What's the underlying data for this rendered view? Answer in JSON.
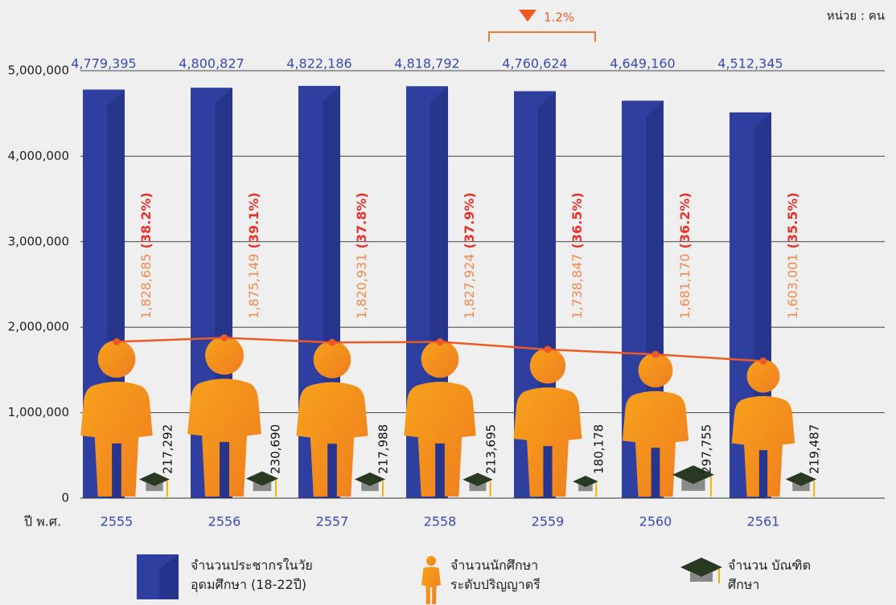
{
  "chart_data": {
    "type": "bar",
    "unit": "หน่วย : คน",
    "x_label": "ปี พ.ศ.",
    "categories": [
      "2555",
      "2556",
      "2557",
      "2558",
      "2559",
      "2560",
      "2561"
    ],
    "ylim": [
      0,
      5000000
    ],
    "yticks": [
      0,
      {
        "value": 1000000,
        "label": "1,000,000"
      },
      {
        "value": 2000000,
        "label": "2,000,000"
      },
      {
        "value": 3000000,
        "label": "3,000,000"
      },
      {
        "value": 4000000,
        "label": "4,000,000"
      },
      {
        "value": 5000000,
        "label": "5,000,000"
      }
    ],
    "grid": true,
    "series": [
      {
        "name": "จำนวนประชากรในวัย อุดมศึกษา (18-22ปี)",
        "color": "#2f3f9f",
        "values": [
          4779395,
          4800827,
          4822186,
          4818792,
          4760624,
          4649160,
          4512345
        ],
        "value_labels": [
          "4,779,395",
          "4,800,827",
          "4,822,186",
          "4,818,792",
          "4,760,624",
          "4,649,160",
          "4,512,345"
        ]
      },
      {
        "name": "จำนวนนักศึกษา ระดับปริญญาตรี",
        "color": "#ee5a24",
        "values": [
          1828685,
          1875149,
          1820931,
          1827924,
          1738847,
          1681170,
          1603001
        ],
        "value_labels": [
          "1,828,685",
          "1,875,149",
          "1,820,931",
          "1,827,924",
          "1,738,847",
          "1,681,170",
          "1,603,001"
        ]
      },
      {
        "name": "จำนวน บัณฑิตศึกษา",
        "color": "#2a3a22",
        "values": [
          217292,
          230690,
          217988,
          213695,
          180178,
          297755,
          219487
        ],
        "value_labels": [
          "217,292",
          "230,690",
          "217,988",
          "213,695",
          "180,178",
          "297,755",
          "219,487"
        ]
      }
    ],
    "share": {
      "values": [
        38.2,
        39.1,
        37.8,
        37.9,
        36.5,
        36.2,
        35.5
      ],
      "value_labels": [
        "(38.2%)",
        "(39.1%)",
        "(37.8%)",
        "(37.9%)",
        "(36.5%)",
        "(36.2%)",
        "(35.5%)"
      ]
    },
    "annotation": "1.2%"
  }
}
